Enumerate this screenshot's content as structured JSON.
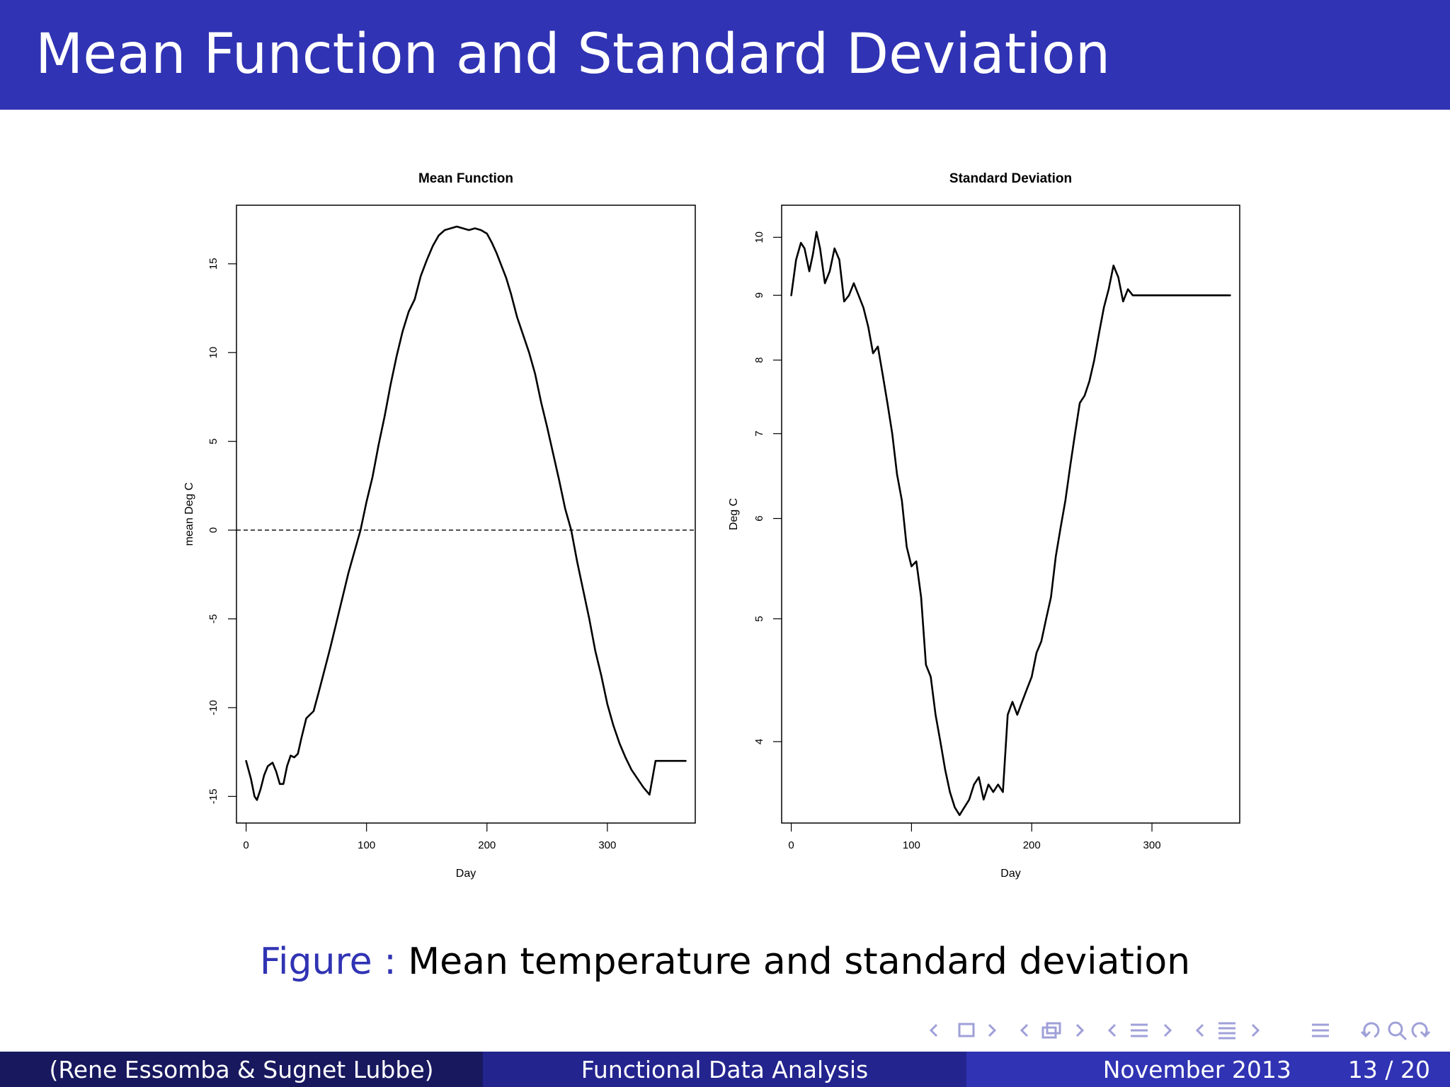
{
  "slide": {
    "title": "Mean Function and Standard Deviation",
    "caption_label": "Figure :",
    "caption_text": "Mean temperature and standard deviation"
  },
  "footer": {
    "authors": "(Rene Essomba & Sugnet Lubbe)",
    "talk_title": "Functional Data Analysis",
    "date": "November 2013",
    "page": "13 / 20"
  },
  "colors": {
    "header": "#3033b3",
    "footer_left": "#17185e",
    "footer_mid": "#23248e",
    "footer_right": "#3033b3",
    "nav_icons": "#9fa0d8"
  },
  "nav_icons": [
    "left-arrow-icon",
    "frame-icon",
    "right-arrow-icon",
    "subsection-icon",
    "section-icon",
    "toc-icon",
    "undo-icon",
    "zoom-icon",
    "redo-icon"
  ],
  "chart_data": [
    {
      "type": "line",
      "title": "Mean Function",
      "xlabel": "Day",
      "ylabel": "mean Deg C",
      "xlim": [
        -8,
        373
      ],
      "ylim": [
        -16.5,
        18.3
      ],
      "xticks": [
        0,
        100,
        200,
        300
      ],
      "yticks": [
        -15,
        -10,
        -5,
        0,
        5,
        10,
        15
      ],
      "hline": 0,
      "grid": false,
      "series": [
        {
          "x": [
            0,
            4,
            7,
            9,
            12,
            15,
            18,
            22,
            25,
            28,
            31,
            34,
            37,
            40,
            43,
            46,
            50,
            53,
            56,
            60,
            65,
            70,
            75,
            80,
            85,
            90,
            95,
            100,
            105,
            110,
            115,
            120,
            125,
            130,
            135,
            140,
            145,
            150,
            155,
            160,
            165,
            170,
            175,
            180,
            185,
            190,
            195,
            200,
            204,
            208,
            212,
            216,
            220,
            225,
            230,
            235,
            240,
            245,
            250,
            255,
            260,
            265,
            270,
            275,
            280,
            285,
            290,
            295,
            300,
            305,
            310,
            315,
            320,
            325,
            330,
            335,
            340,
            345,
            350,
            355,
            360,
            365
          ],
          "y": [
            -13.0,
            -14.0,
            -15.0,
            -15.2,
            -14.6,
            -13.8,
            -13.3,
            -13.1,
            -13.6,
            -14.3,
            -14.3,
            -13.3,
            -12.7,
            -12.8,
            -12.6,
            -11.7,
            -10.6,
            -10.4,
            -10.2,
            -9.2,
            -7.9,
            -6.6,
            -5.2,
            -3.8,
            -2.4,
            -1.2,
            0.0,
            1.6,
            3.0,
            4.8,
            6.4,
            8.2,
            9.8,
            11.2,
            12.3,
            13.0,
            14.3,
            15.2,
            16.0,
            16.6,
            16.9,
            17.0,
            17.1,
            17.0,
            16.9,
            17.0,
            16.9,
            16.7,
            16.2,
            15.6,
            14.9,
            14.2,
            13.3,
            12.0,
            11.0,
            10.0,
            8.8,
            7.2,
            5.8,
            4.3,
            2.8,
            1.2,
            0.0,
            -1.8,
            -3.4,
            -5.0,
            -6.8,
            -8.2,
            -9.8,
            -11.0,
            -12.0,
            -12.8,
            -13.5,
            -14.0,
            -14.5,
            -14.9,
            -13.0,
            -13.0,
            -13.0,
            -13.0,
            -13.0,
            -13.0
          ]
        }
      ]
    },
    {
      "type": "line",
      "title": "Standard Deviation",
      "xlabel": "Day",
      "ylabel": "Deg C",
      "yscale": "log",
      "xlim": [
        -8,
        373
      ],
      "ylim": [
        3.45,
        10.6
      ],
      "xticks": [
        0,
        100,
        200,
        300
      ],
      "yticks": [
        4,
        5,
        6,
        7,
        8,
        9,
        10
      ],
      "grid": false,
      "series": [
        {
          "x": [
            0,
            4,
            8,
            11,
            15,
            18,
            21,
            24,
            28,
            32,
            36,
            40,
            44,
            48,
            52,
            56,
            60,
            64,
            68,
            72,
            76,
            80,
            84,
            88,
            92,
            96,
            100,
            104,
            108,
            112,
            116,
            120,
            124,
            128,
            132,
            136,
            140,
            144,
            148,
            152,
            156,
            160,
            164,
            168,
            172,
            176,
            180,
            184,
            188,
            192,
            196,
            200,
            204,
            208,
            212,
            216,
            220,
            224,
            228,
            232,
            236,
            240,
            244,
            248,
            252,
            256,
            260,
            264,
            268,
            272,
            276,
            280,
            284,
            288,
            292,
            296,
            300,
            304,
            308,
            312,
            316,
            320,
            324,
            328,
            332,
            336,
            340,
            344,
            348,
            352,
            356,
            360,
            365
          ],
          "y": [
            9.0,
            9.6,
            9.9,
            9.8,
            9.4,
            9.7,
            10.1,
            9.8,
            9.2,
            9.4,
            9.8,
            9.6,
            8.9,
            9.0,
            9.2,
            9.0,
            8.8,
            8.5,
            8.1,
            8.2,
            7.8,
            7.4,
            7.0,
            6.5,
            6.2,
            5.7,
            5.5,
            5.55,
            5.2,
            4.6,
            4.5,
            4.2,
            4.0,
            3.8,
            3.65,
            3.55,
            3.5,
            3.55,
            3.6,
            3.7,
            3.75,
            3.6,
            3.7,
            3.65,
            3.7,
            3.65,
            4.2,
            4.3,
            4.2,
            4.3,
            4.4,
            4.5,
            4.7,
            4.8,
            5.0,
            5.2,
            5.6,
            5.9,
            6.2,
            6.6,
            7.0,
            7.4,
            7.5,
            7.7,
            8.0,
            8.4,
            8.8,
            9.1,
            9.5,
            9.3,
            8.9,
            9.1,
            9.0,
            9.0,
            9.0,
            9.0,
            9.0,
            9.0,
            9.0,
            9.0,
            9.0,
            9.0,
            9.0,
            9.0,
            9.0,
            9.0,
            9.0,
            9.0,
            9.0,
            9.0,
            9.0,
            9.0,
            9.0
          ]
        }
      ]
    }
  ]
}
